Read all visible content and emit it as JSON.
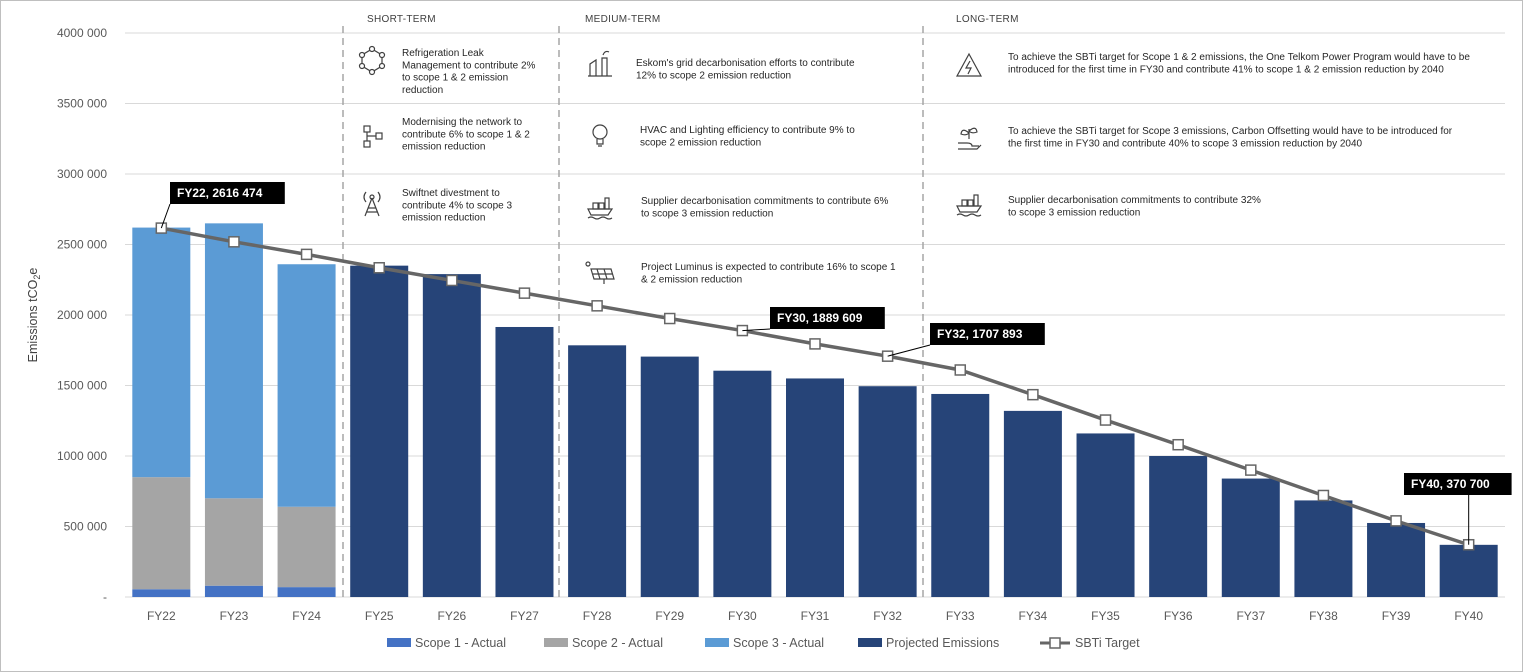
{
  "chart_data": {
    "type": "bar",
    "ylabel": "Emissions tCO2e",
    "ylim": [
      0,
      4000000
    ],
    "y_ticks": [
      "-",
      "500 000",
      "1000 000",
      "1500 000",
      "2000 000",
      "2500 000",
      "3000 000",
      "3500 000",
      "4000 000"
    ],
    "categories": [
      "FY22",
      "FY23",
      "FY24",
      "FY25",
      "FY26",
      "FY27",
      "FY28",
      "FY29",
      "FY30",
      "FY31",
      "FY32",
      "FY33",
      "FY34",
      "FY35",
      "FY36",
      "FY37",
      "FY38",
      "FY39",
      "FY40"
    ],
    "stacked_series": [
      {
        "name": "Scope 1 - Actual",
        "color": "#4472C4",
        "values": [
          55000,
          80000,
          70000,
          null,
          null,
          null,
          null,
          null,
          null,
          null,
          null,
          null,
          null,
          null,
          null,
          null,
          null,
          null,
          null
        ]
      },
      {
        "name": "Scope 2 - Actual",
        "color": "#A5A5A5",
        "values": [
          795000,
          620000,
          570000,
          null,
          null,
          null,
          null,
          null,
          null,
          null,
          null,
          null,
          null,
          null,
          null,
          null,
          null,
          null,
          null
        ]
      },
      {
        "name": "Scope 3 - Actual",
        "color": "#5B9BD5",
        "values": [
          1770000,
          1950000,
          1720000,
          null,
          null,
          null,
          null,
          null,
          null,
          null,
          null,
          null,
          null,
          null,
          null,
          null,
          null,
          null,
          null
        ]
      }
    ],
    "bar_series": {
      "name": "Projected Emissions",
      "color": "#264478",
      "values": [
        null,
        null,
        null,
        2350000,
        2290000,
        1915000,
        1785000,
        1705000,
        1605000,
        1550000,
        1495000,
        1440000,
        1320000,
        1160000,
        1000000,
        840000,
        685000,
        525000,
        370000
      ]
    },
    "line_series": {
      "name": "SBTi Target",
      "color": "#666666",
      "values": [
        2616474,
        2519000,
        2430000,
        2335000,
        2245000,
        2155000,
        2065000,
        1975000,
        1889609,
        1795000,
        1707893,
        1610000,
        1435000,
        1255000,
        1080000,
        900000,
        720000,
        540000,
        370700
      ]
    },
    "callouts": [
      {
        "category": "FY22",
        "text": "FY22, 2616 474"
      },
      {
        "category": "FY30",
        "text": "FY30, 1889 609"
      },
      {
        "category": "FY32",
        "text": "FY32, 1707 893"
      },
      {
        "category": "FY40",
        "text": "FY40, 370 700"
      }
    ],
    "legend": {
      "position": "bottom",
      "entries": [
        "Scope 1 - Actual",
        "Scope 2 - Actual",
        "Scope 3 - Actual",
        "Projected Emissions",
        "SBTi Target"
      ]
    },
    "grid": true
  },
  "phases": [
    {
      "label": "SHORT-TERM"
    },
    {
      "label": "MEDIUM-TERM"
    },
    {
      "label": "LONG-TERM"
    }
  ],
  "annotations": [
    {
      "icon": "refrigeration-icon",
      "lines": [
        "Refrigeration Leak",
        "Management to contribute 2%",
        "to scope 1 & 2 emission",
        "reduction"
      ]
    },
    {
      "icon": "network-icon",
      "lines": [
        "Modernising the network to",
        "contribute 6% to scope 1 & 2",
        "emission reduction"
      ]
    },
    {
      "icon": "antenna-tower-icon",
      "lines": [
        "Swiftnet divestment to",
        "contribute 4% to scope 3",
        "emission reduction"
      ]
    },
    {
      "icon": "power-plant-icon",
      "lines": [
        "Eskom's grid decarbonisation efforts to contribute",
        "12% to scope 2 emission reduction"
      ]
    },
    {
      "icon": "light-bulb-icon",
      "lines": [
        "HVAC and Lighting efficiency to contribute 9% to",
        "scope 2 emission reduction"
      ]
    },
    {
      "icon": "cargo-ship-icon",
      "lines": [
        "Supplier decarbonisation commitments to contribute 6%",
        "to scope 3 emission reduction"
      ]
    },
    {
      "icon": "solar-panel-icon",
      "lines": [
        "Project Luminus is expected to contribute 16% to scope 1",
        "& 2 emission reduction"
      ]
    },
    {
      "icon": "lightning-warning-icon",
      "lines": [
        "To achieve the SBTi target for Scope 1 & 2 emissions, the One Telkom Power Program would have to be",
        "introduced for the first time in FY30 and contribute 41% to scope 1 & 2 emission reduction by 2040"
      ]
    },
    {
      "icon": "plant-hand-icon",
      "lines": [
        "To achieve the SBTi target for Scope 3 emissions, Carbon Offsetting would have to be introduced for",
        "the first time in FY30 and contribute 40% to scope 3 emission reduction by 2040"
      ]
    },
    {
      "icon": "cargo-ship-icon",
      "lines": [
        "Supplier decarbonisation commitments to contribute 32%",
        "to scope 3 emission reduction"
      ]
    }
  ]
}
